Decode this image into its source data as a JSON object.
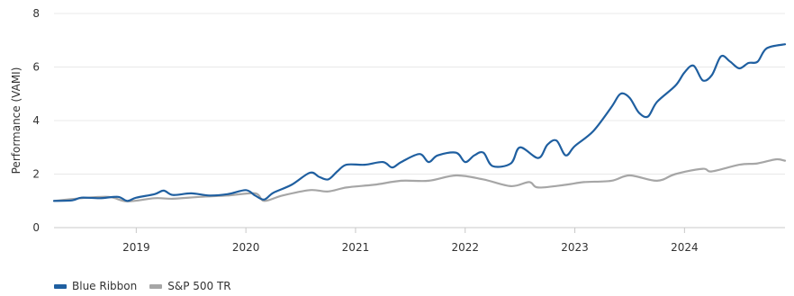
{
  "chart_data": {
    "type": "line",
    "ylabel": "Performance (VAMI)",
    "ylim": [
      0,
      8
    ],
    "y_ticks": [
      "0",
      "2",
      "4",
      "6",
      "8"
    ],
    "x_ticks": [
      "2019",
      "2020",
      "2021",
      "2022",
      "2023",
      "2024"
    ],
    "xlim": [
      "2018-04",
      "2024-12"
    ],
    "grid": "horizontal",
    "legend_position": "bottom-left",
    "series": [
      {
        "name": "Blue Ribbon",
        "color": "#1f5fa0",
        "points": [
          [
            "2018-04",
            1.0
          ],
          [
            "2018-06",
            1.02
          ],
          [
            "2018-07",
            1.12
          ],
          [
            "2018-09",
            1.1
          ],
          [
            "2018-11",
            1.15
          ],
          [
            "2018-12",
            1.0
          ],
          [
            "2019-01",
            1.12
          ],
          [
            "2019-03",
            1.25
          ],
          [
            "2019-04",
            1.38
          ],
          [
            "2019-05",
            1.22
          ],
          [
            "2019-07",
            1.28
          ],
          [
            "2019-09",
            1.2
          ],
          [
            "2019-11",
            1.25
          ],
          [
            "2020-01",
            1.4
          ],
          [
            "2020-02",
            1.2
          ],
          [
            "2020-03",
            1.05
          ],
          [
            "2020-04",
            1.3
          ],
          [
            "2020-06",
            1.6
          ],
          [
            "2020-08",
            2.05
          ],
          [
            "2020-09",
            1.9
          ],
          [
            "2020-10",
            1.8
          ],
          [
            "2020-11",
            2.1
          ],
          [
            "2020-12",
            2.35
          ],
          [
            "2021-02",
            2.35
          ],
          [
            "2021-04",
            2.45
          ],
          [
            "2021-05",
            2.25
          ],
          [
            "2021-06",
            2.45
          ],
          [
            "2021-08",
            2.75
          ],
          [
            "2021-09",
            2.45
          ],
          [
            "2021-10",
            2.7
          ],
          [
            "2021-12",
            2.8
          ],
          [
            "2022-01",
            2.45
          ],
          [
            "2022-02",
            2.7
          ],
          [
            "2022-03",
            2.8
          ],
          [
            "2022-04",
            2.3
          ],
          [
            "2022-06",
            2.4
          ],
          [
            "2022-07",
            3.0
          ],
          [
            "2022-09",
            2.6
          ],
          [
            "2022-10",
            3.1
          ],
          [
            "2022-11",
            3.25
          ],
          [
            "2022-12",
            2.7
          ],
          [
            "2023-01",
            3.05
          ],
          [
            "2023-03",
            3.6
          ],
          [
            "2023-05",
            4.5
          ],
          [
            "2023-06",
            5.0
          ],
          [
            "2023-07",
            4.85
          ],
          [
            "2023-08",
            4.3
          ],
          [
            "2023-09",
            4.15
          ],
          [
            "2023-10",
            4.7
          ],
          [
            "2023-12",
            5.3
          ],
          [
            "2024-01",
            5.8
          ],
          [
            "2024-02",
            6.05
          ],
          [
            "2024-03",
            5.5
          ],
          [
            "2024-04",
            5.7
          ],
          [
            "2024-05",
            6.4
          ],
          [
            "2024-06",
            6.2
          ],
          [
            "2024-07",
            5.95
          ],
          [
            "2024-08",
            6.15
          ],
          [
            "2024-09",
            6.2
          ],
          [
            "2024-10",
            6.7
          ],
          [
            "2024-12",
            6.85
          ]
        ]
      },
      {
        "name": "S&P 500 TR",
        "color": "#a6a6a6",
        "points": [
          [
            "2018-04",
            1.0
          ],
          [
            "2018-07",
            1.1
          ],
          [
            "2018-10",
            1.15
          ],
          [
            "2018-12",
            0.98
          ],
          [
            "2019-03",
            1.1
          ],
          [
            "2019-05",
            1.08
          ],
          [
            "2019-08",
            1.15
          ],
          [
            "2019-11",
            1.2
          ],
          [
            "2020-02",
            1.28
          ],
          [
            "2020-03",
            1.0
          ],
          [
            "2020-05",
            1.2
          ],
          [
            "2020-08",
            1.4
          ],
          [
            "2020-10",
            1.35
          ],
          [
            "2020-12",
            1.5
          ],
          [
            "2021-03",
            1.6
          ],
          [
            "2021-06",
            1.75
          ],
          [
            "2021-09",
            1.75
          ],
          [
            "2021-12",
            1.95
          ],
          [
            "2022-03",
            1.8
          ],
          [
            "2022-06",
            1.55
          ],
          [
            "2022-08",
            1.7
          ],
          [
            "2022-09",
            1.5
          ],
          [
            "2022-12",
            1.6
          ],
          [
            "2023-02",
            1.7
          ],
          [
            "2023-05",
            1.75
          ],
          [
            "2023-07",
            1.95
          ],
          [
            "2023-10",
            1.75
          ],
          [
            "2023-12",
            2.0
          ],
          [
            "2024-03",
            2.2
          ],
          [
            "2024-04",
            2.1
          ],
          [
            "2024-07",
            2.35
          ],
          [
            "2024-09",
            2.4
          ],
          [
            "2024-11",
            2.55
          ],
          [
            "2024-12",
            2.5
          ]
        ]
      }
    ]
  }
}
